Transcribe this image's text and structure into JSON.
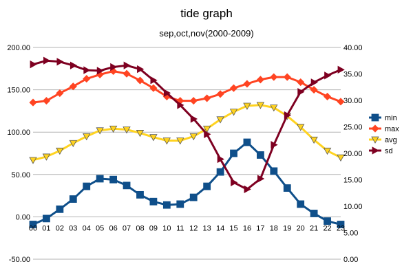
{
  "chart_data": {
    "type": "line",
    "title": "tide graph",
    "subtitle": "sep,oct,nov(2000-2009)",
    "categories": [
      "00",
      "01",
      "02",
      "03",
      "04",
      "05",
      "06",
      "07",
      "08",
      "09",
      "10",
      "11",
      "12",
      "13",
      "14",
      "15",
      "16",
      "17",
      "18",
      "19",
      "20",
      "21",
      "22",
      "23"
    ],
    "y_left": {
      "min": -50,
      "max": 200,
      "ticks": [
        "-50.00",
        "0.00",
        "50.00",
        "100.00",
        "150.00",
        "200.00"
      ]
    },
    "y_right": {
      "min": 0,
      "max": 40,
      "ticks": [
        "0.00",
        "5.00",
        "10.00",
        "15.00",
        "20.00",
        "25.00",
        "30.00",
        "35.00",
        "40.00"
      ]
    },
    "grid": "horizontal",
    "legend": "right",
    "series": [
      {
        "name": "min",
        "axis": "left",
        "color": "#0f4f8a",
        "marker": "square",
        "values": [
          -9,
          -2,
          9,
          21,
          36,
          45,
          44,
          37,
          26,
          18,
          14,
          15,
          23,
          36,
          53,
          75,
          88,
          73,
          54,
          34,
          15,
          4,
          -5,
          -9
        ]
      },
      {
        "name": "max",
        "axis": "left",
        "color": "#ff4422",
        "marker": "diamond",
        "values": [
          135,
          137,
          146,
          154,
          163,
          168,
          172,
          169,
          161,
          152,
          142,
          137,
          137,
          140,
          145,
          152,
          157,
          162,
          165,
          165,
          159,
          150,
          142,
          136
        ]
      },
      {
        "name": "avg",
        "axis": "left",
        "color": "#ffd320",
        "marker": "triangle-down",
        "values": [
          67,
          71,
          78,
          87,
          95,
          102,
          104,
          103,
          99,
          94,
          90,
          90,
          95,
          104,
          115,
          124,
          131,
          132,
          129,
          119,
          106,
          91,
          78,
          70
        ]
      },
      {
        "name": "sd",
        "axis": "right",
        "color": "#7e0021",
        "marker": "triangle-right",
        "values": [
          36.8,
          37.5,
          37.3,
          36.6,
          35.7,
          35.6,
          36.3,
          36.6,
          35.9,
          33.8,
          31.4,
          29.1,
          26.5,
          23.6,
          18.9,
          14.5,
          13.2,
          15.2,
          21.6,
          27.2,
          31.6,
          33.4,
          34.7,
          35.8
        ]
      }
    ]
  }
}
